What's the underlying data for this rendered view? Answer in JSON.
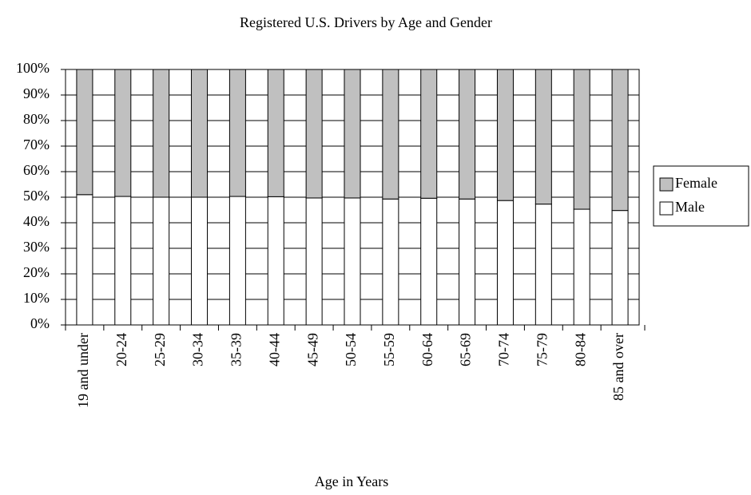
{
  "chart_data": {
    "type": "stacked_bar_100",
    "title": "Registered U.S. Drivers by Age and Gender",
    "x_label": "Age in Years",
    "categories": [
      "19 and under",
      "20-24",
      "25-29",
      "30-34",
      "35-39",
      "40-44",
      "45-49",
      "50-54",
      "55-59",
      "60-64",
      "65-69",
      "70-74",
      "75-79",
      "80-84",
      "85 and over"
    ],
    "series": [
      {
        "name": "Male",
        "color": "#ffffff",
        "values": [
          51,
          50.3,
          50,
          50,
          50.3,
          50.2,
          49.7,
          49.7,
          49.3,
          49.6,
          49.3,
          48.7,
          47.3,
          45.3,
          44.8
        ]
      },
      {
        "name": "Female",
        "color": "#c0c0c0",
        "values": [
          49,
          49.7,
          50,
          50,
          49.7,
          49.8,
          50.3,
          50.3,
          50.7,
          50.4,
          50.7,
          51.3,
          52.7,
          54.7,
          55.2
        ]
      }
    ],
    "ylim": [
      0,
      100
    ],
    "yticks": [
      {
        "value": 0,
        "label": "0%"
      },
      {
        "value": 10,
        "label": "10%"
      },
      {
        "value": 20,
        "label": "20%"
      },
      {
        "value": 30,
        "label": "30%"
      },
      {
        "value": 40,
        "label": "40%"
      },
      {
        "value": 50,
        "label": "50%"
      },
      {
        "value": 60,
        "label": "60%"
      },
      {
        "value": 70,
        "label": "70%"
      },
      {
        "value": 80,
        "label": "80%"
      },
      {
        "value": 90,
        "label": "90%"
      },
      {
        "value": 100,
        "label": "100%"
      }
    ],
    "grid": true,
    "legend": "right"
  }
}
